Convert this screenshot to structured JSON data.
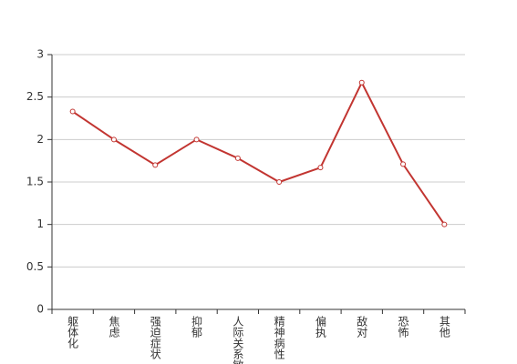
{
  "chart_data": {
    "type": "line",
    "categories": [
      "躯体化",
      "焦虑",
      "强迫症状",
      "抑郁",
      "人际关系敏感",
      "精神病性",
      "偏执",
      "敌对",
      "恐怖",
      "其他"
    ],
    "values": [
      2.33,
      2.0,
      1.7,
      2.0,
      1.78,
      1.5,
      1.67,
      2.67,
      1.71,
      1.0
    ],
    "color": "#c23531",
    "ylim": [
      0,
      3
    ],
    "yticks": [
      0,
      0.5,
      1,
      1.5,
      2,
      2.5,
      3
    ],
    "grid": true
  }
}
